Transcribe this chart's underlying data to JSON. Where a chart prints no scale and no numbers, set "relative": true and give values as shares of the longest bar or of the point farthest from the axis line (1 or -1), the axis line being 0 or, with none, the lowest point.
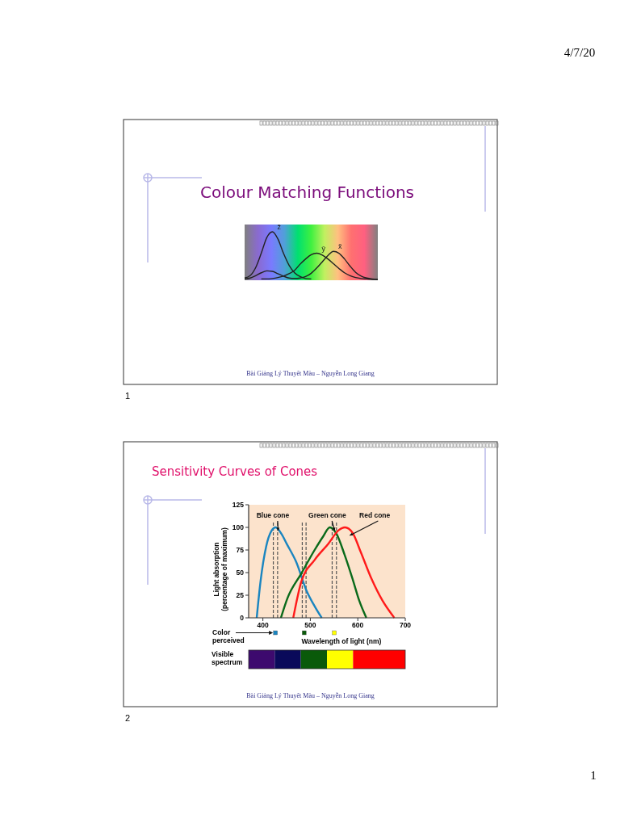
{
  "chart_data": [
    {
      "type": "line",
      "title": "Colour Matching Functions",
      "relative": true,
      "categories": [
        null,
        null,
        null,
        null,
        null,
        null,
        null,
        null,
        null,
        null,
        null,
        null,
        null,
        null,
        null,
        null,
        null,
        null,
        null,
        null,
        null,
        null,
        null,
        null,
        null
      ],
      "series": [
        {
          "name": "z̄",
          "color": "#222222",
          "values": [
            0.03,
            0.08,
            0.25,
            0.55,
            0.88,
            1,
            0.85,
            0.55,
            0.3,
            0.14,
            0.06,
            0.02,
            0.01,
            null,
            null,
            null,
            null,
            null,
            null,
            null,
            null,
            null,
            null,
            null,
            null
          ]
        },
        {
          "name": "ȳ",
          "color": "#222222",
          "values": [
            null,
            null,
            null,
            0.01,
            0.01,
            0.02,
            0.04,
            0.07,
            0.12,
            0.19,
            0.32,
            0.43,
            0.52,
            0.55,
            0.51,
            0.43,
            0.33,
            0.23,
            0.14,
            0.08,
            0.04,
            0.02,
            0.01,
            0,
            0
          ]
        },
        {
          "name": "x̄",
          "color": "#222222",
          "values": [
            0.01,
            0.03,
            0.08,
            0.14,
            0.18,
            0.17,
            0.12,
            0.07,
            0.03,
            0.02,
            0.03,
            0.06,
            0.13,
            0.24,
            0.37,
            0.5,
            0.59,
            0.55,
            0.43,
            0.28,
            0.15,
            0.07,
            0.03,
            0.01,
            0
          ]
        }
      ],
      "annotations": [
        "Bài Giảng Lý Thuyết Màu – Nguyễn Long Giang",
        "1",
        "4/7/20",
        "1"
      ]
    },
    {
      "type": "line",
      "title": "Sensitivity Curves of Cones",
      "xlabel": "Wavelength of light (nm)",
      "ylabel": "Light absorption\n(percentage of maximum)",
      "xlim": [
        370,
        700
      ],
      "xticks": [
        400,
        500,
        600,
        700
      ],
      "ylim": [
        0,
        125
      ],
      "yticks": [
        0,
        25,
        50,
        75,
        100,
        125
      ],
      "series": [
        {
          "name": "Blue cone",
          "color": "#1a85c0",
          "x": [
            387,
            395,
            407,
            418,
            427,
            440,
            450,
            470,
            492,
            510,
            524
          ],
          "values": [
            0,
            40,
            79,
            96,
            100,
            92,
            82,
            62,
            30,
            12,
            0
          ]
        },
        {
          "name": "Green cone",
          "color": "#0a6a1a",
          "x": [
            438,
            452,
            481,
            509,
            527,
            541,
            555,
            572,
            589,
            603,
            618
          ],
          "values": [
            0,
            22,
            49,
            75,
            90,
            100,
            93,
            70,
            43,
            19,
            0
          ]
        },
        {
          "name": "Red cone",
          "color": "#ff1a1a",
          "x": [
            464,
            481,
            509,
            538,
            560,
            573,
            589,
            606,
            629,
            652,
            677
          ],
          "values": [
            0,
            40,
            64,
            82,
            97,
            100,
            94,
            73,
            43,
            19,
            0
          ]
        }
      ],
      "ref_lines": [
        {
          "axis": "x",
          "value": 422,
          "color": "#555555",
          "line_style": "dashed"
        },
        {
          "axis": "x",
          "value": 431,
          "color": "#555555",
          "line_style": "dashed"
        },
        {
          "axis": "x",
          "value": 483,
          "color": "#555555",
          "line_style": "dashed"
        },
        {
          "axis": "x",
          "value": 491,
          "color": "#555555",
          "line_style": "dashed"
        },
        {
          "axis": "x",
          "value": 546,
          "color": "#555555",
          "line_style": "dashed"
        },
        {
          "axis": "x",
          "value": 555,
          "color": "#555555",
          "line_style": "dashed"
        }
      ],
      "annotations": [
        "Bài Giảng Lý Thuyết Màu – Nguyễn Long Giang",
        "2",
        "Color\nperceived",
        "Visible\nspectrum"
      ]
    }
  ]
}
